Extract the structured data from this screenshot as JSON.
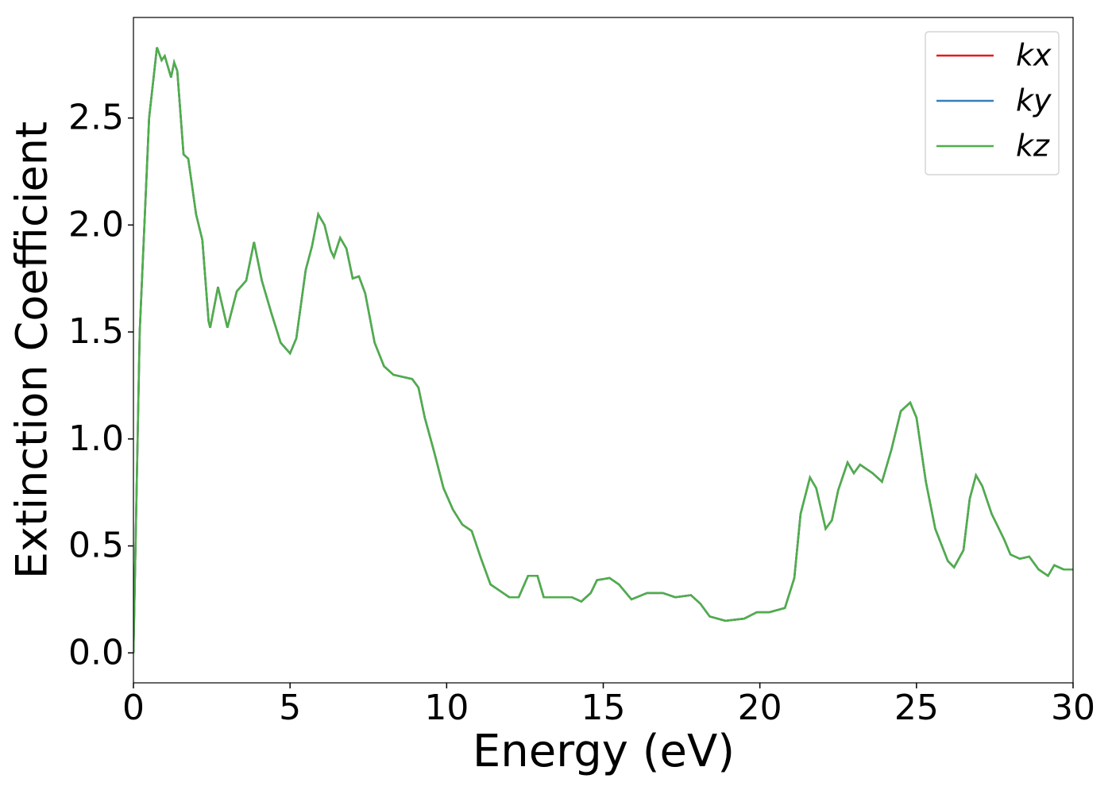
{
  "chart_data": {
    "type": "line",
    "xlabel": "Energy (eV)",
    "ylabel": "Extinction Coefficient",
    "x": [
      0,
      0.2,
      0.5,
      0.75,
      0.9,
      1.0,
      1.2,
      1.3,
      1.4,
      1.6,
      1.75,
      2.0,
      2.2,
      2.4,
      2.45,
      2.7,
      3.0,
      3.3,
      3.6,
      3.85,
      4.1,
      4.4,
      4.7,
      5.0,
      5.2,
      5.5,
      5.7,
      5.9,
      6.1,
      6.3,
      6.4,
      6.6,
      6.8,
      7.0,
      7.2,
      7.4,
      7.7,
      8.0,
      8.3,
      8.6,
      8.9,
      9.1,
      9.3,
      9.6,
      9.9,
      10.2,
      10.5,
      10.8,
      11.1,
      11.4,
      11.7,
      12.0,
      12.3,
      12.6,
      12.9,
      13.1,
      13.5,
      14.0,
      14.3,
      14.6,
      14.8,
      15.2,
      15.5,
      15.9,
      16.4,
      16.9,
      17.3,
      17.8,
      18.1,
      18.4,
      18.9,
      19.5,
      19.9,
      20.3,
      20.8,
      21.1,
      21.3,
      21.6,
      21.8,
      22.1,
      22.3,
      22.5,
      22.8,
      23.0,
      23.2,
      23.6,
      23.9,
      24.2,
      24.5,
      24.8,
      25.0,
      25.3,
      25.6,
      26.0,
      26.2,
      26.5,
      26.7,
      26.9,
      27.1,
      27.4,
      27.8,
      28.0,
      28.3,
      28.6,
      28.9,
      29.2,
      29.4,
      29.7,
      30.0
    ],
    "series": [
      {
        "name": "kx",
        "color": "#e41a1c",
        "values": [
          0,
          1.5,
          2.5,
          2.83,
          2.77,
          2.79,
          2.69,
          2.76,
          2.72,
          2.33,
          2.31,
          2.05,
          1.93,
          1.55,
          1.52,
          1.71,
          1.52,
          1.69,
          1.74,
          1.92,
          1.74,
          1.59,
          1.45,
          1.4,
          1.47,
          1.79,
          1.9,
          2.05,
          2.0,
          1.88,
          1.85,
          1.94,
          1.89,
          1.75,
          1.76,
          1.68,
          1.45,
          1.34,
          1.3,
          1.29,
          1.28,
          1.24,
          1.1,
          0.94,
          0.77,
          0.67,
          0.6,
          0.57,
          0.44,
          0.32,
          0.29,
          0.26,
          0.26,
          0.36,
          0.36,
          0.26,
          0.26,
          0.26,
          0.24,
          0.28,
          0.34,
          0.35,
          0.32,
          0.25,
          0.28,
          0.28,
          0.26,
          0.27,
          0.23,
          0.17,
          0.15,
          0.16,
          0.19,
          0.19,
          0.21,
          0.35,
          0.65,
          0.82,
          0.77,
          0.58,
          0.62,
          0.76,
          0.89,
          0.84,
          0.88,
          0.84,
          0.8,
          0.95,
          1.13,
          1.17,
          1.1,
          0.8,
          0.58,
          0.43,
          0.4,
          0.48,
          0.72,
          0.83,
          0.78,
          0.65,
          0.53,
          0.46,
          0.44,
          0.45,
          0.39,
          0.36,
          0.41,
          0.39,
          0.39
        ]
      },
      {
        "name": "ky",
        "color": "#377eb8",
        "values": [
          0,
          1.5,
          2.5,
          2.83,
          2.77,
          2.79,
          2.69,
          2.76,
          2.72,
          2.33,
          2.31,
          2.05,
          1.93,
          1.55,
          1.52,
          1.71,
          1.52,
          1.69,
          1.74,
          1.92,
          1.74,
          1.59,
          1.45,
          1.4,
          1.47,
          1.79,
          1.9,
          2.05,
          2.0,
          1.88,
          1.85,
          1.94,
          1.89,
          1.75,
          1.76,
          1.68,
          1.45,
          1.34,
          1.3,
          1.29,
          1.28,
          1.24,
          1.1,
          0.94,
          0.77,
          0.67,
          0.6,
          0.57,
          0.44,
          0.32,
          0.29,
          0.26,
          0.26,
          0.36,
          0.36,
          0.26,
          0.26,
          0.26,
          0.24,
          0.28,
          0.34,
          0.35,
          0.32,
          0.25,
          0.28,
          0.28,
          0.26,
          0.27,
          0.23,
          0.17,
          0.15,
          0.16,
          0.19,
          0.19,
          0.21,
          0.35,
          0.65,
          0.82,
          0.77,
          0.58,
          0.62,
          0.76,
          0.89,
          0.84,
          0.88,
          0.84,
          0.8,
          0.95,
          1.13,
          1.17,
          1.1,
          0.8,
          0.58,
          0.43,
          0.4,
          0.48,
          0.72,
          0.83,
          0.78,
          0.65,
          0.53,
          0.46,
          0.44,
          0.45,
          0.39,
          0.36,
          0.41,
          0.39,
          0.39
        ]
      },
      {
        "name": "kz",
        "color": "#4daf4a",
        "values": [
          0,
          1.5,
          2.5,
          2.83,
          2.77,
          2.79,
          2.69,
          2.76,
          2.72,
          2.33,
          2.31,
          2.05,
          1.93,
          1.55,
          1.52,
          1.71,
          1.52,
          1.69,
          1.74,
          1.92,
          1.74,
          1.59,
          1.45,
          1.4,
          1.47,
          1.79,
          1.9,
          2.05,
          2.0,
          1.88,
          1.85,
          1.94,
          1.89,
          1.75,
          1.76,
          1.68,
          1.45,
          1.34,
          1.3,
          1.29,
          1.28,
          1.24,
          1.1,
          0.94,
          0.77,
          0.67,
          0.6,
          0.57,
          0.44,
          0.32,
          0.29,
          0.26,
          0.26,
          0.36,
          0.36,
          0.26,
          0.26,
          0.26,
          0.24,
          0.28,
          0.34,
          0.35,
          0.32,
          0.25,
          0.28,
          0.28,
          0.26,
          0.27,
          0.23,
          0.17,
          0.15,
          0.16,
          0.19,
          0.19,
          0.21,
          0.35,
          0.65,
          0.82,
          0.77,
          0.58,
          0.62,
          0.76,
          0.89,
          0.84,
          0.88,
          0.84,
          0.8,
          0.95,
          1.13,
          1.17,
          1.1,
          0.8,
          0.58,
          0.43,
          0.4,
          0.48,
          0.72,
          0.83,
          0.78,
          0.65,
          0.53,
          0.46,
          0.44,
          0.45,
          0.39,
          0.36,
          0.41,
          0.39,
          0.39
        ]
      }
    ],
    "xlim": [
      0,
      30
    ],
    "xticks": [
      0,
      5,
      10,
      15,
      20,
      25,
      30
    ],
    "ylim": [
      -0.14,
      2.97
    ],
    "yticks": [
      {
        "value": 0,
        "label": "0.0"
      },
      0.5,
      {
        "value": 1,
        "label": "1.0"
      },
      1.5,
      {
        "value": 2,
        "label": "2.0"
      },
      2.5
    ],
    "grid": false,
    "legend": "upper right"
  }
}
